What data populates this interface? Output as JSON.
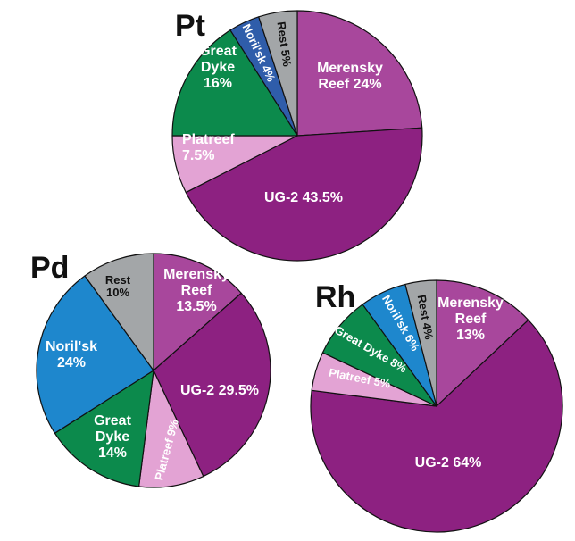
{
  "colors": {
    "merensky": "#a8479c",
    "ug2": "#8d2181",
    "platreef": "#e3a3d4",
    "great_dyke": "#0c8a4c",
    "norilsk_pt": "#2f5daa",
    "norilsk": "#1e87cd",
    "rest": "#a3a6a8",
    "stroke": "#111111"
  },
  "chart_data": [
    {
      "type": "pie",
      "title": "Pt",
      "start_angle_deg": 0,
      "direction": "clockwise",
      "slices": [
        {
          "key": "merensky",
          "name": "Merensky Reef",
          "value": 24,
          "label": [
            "Merensky",
            "Reef 24%"
          ]
        },
        {
          "key": "ug2",
          "name": "UG-2",
          "value": 43.5,
          "label": [
            "UG-2 43.5%"
          ]
        },
        {
          "key": "platreef",
          "name": "Platreef",
          "value": 7.5,
          "label": [
            "Platreef",
            "7.5%"
          ]
        },
        {
          "key": "great_dyke",
          "name": "Great Dyke",
          "value": 16,
          "label": [
            "Great",
            "Dyke",
            "16%"
          ]
        },
        {
          "key": "norilsk_pt",
          "name": "Noril'sk",
          "value": 4,
          "label": [
            "Noril'sk 4%"
          ]
        },
        {
          "key": "rest",
          "name": "Rest",
          "value": 5,
          "label": [
            "Rest 5%"
          ]
        }
      ]
    },
    {
      "type": "pie",
      "title": "Pd",
      "start_angle_deg": 0,
      "direction": "clockwise",
      "slices": [
        {
          "key": "merensky",
          "name": "Merensky Reef",
          "value": 13.5,
          "label": [
            "Merensky",
            "Reef",
            "13.5%"
          ]
        },
        {
          "key": "ug2",
          "name": "UG-2",
          "value": 29.5,
          "label": [
            "UG-2 29.5%"
          ]
        },
        {
          "key": "platreef",
          "name": "Platreef",
          "value": 9,
          "label": [
            "Platreef 9%"
          ]
        },
        {
          "key": "great_dyke",
          "name": "Great Dyke",
          "value": 14,
          "label": [
            "Great",
            "Dyke",
            "14%"
          ]
        },
        {
          "key": "norilsk",
          "name": "Noril'sk",
          "value": 24,
          "label": [
            "Noril'sk",
            "24%"
          ]
        },
        {
          "key": "rest",
          "name": "Rest",
          "value": 10,
          "label": [
            "Rest",
            "10%"
          ]
        }
      ]
    },
    {
      "type": "pie",
      "title": "Rh",
      "start_angle_deg": 0,
      "direction": "clockwise",
      "slices": [
        {
          "key": "merensky",
          "name": "Merensky Reef",
          "value": 13,
          "label": [
            "Merensky",
            "Reef",
            "13%"
          ]
        },
        {
          "key": "ug2",
          "name": "UG-2",
          "value": 64,
          "label": [
            "UG-2 64%"
          ]
        },
        {
          "key": "platreef",
          "name": "Platreef",
          "value": 5,
          "label": [
            "Platreef 5%"
          ]
        },
        {
          "key": "great_dyke",
          "name": "Great Dyke",
          "value": 8,
          "label": [
            "Great Dyke 8%"
          ]
        },
        {
          "key": "norilsk",
          "name": "Noril'sk",
          "value": 6,
          "label": [
            "Noril'sk 6%"
          ]
        },
        {
          "key": "rest",
          "name": "Rest",
          "value": 4,
          "label": [
            "Rest 4%"
          ]
        }
      ]
    }
  ]
}
